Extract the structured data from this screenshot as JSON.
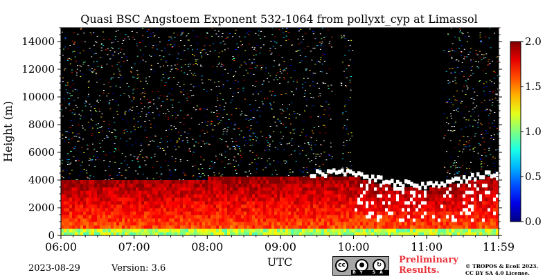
{
  "chart_data": {
    "type": "heatmap",
    "title": "Quasi BSC Angstoem Exponent 532-1064 from pollyxt_cyp at Limassol",
    "xlabel": "UTC",
    "ylabel": "Height (m)",
    "x_ticks": [
      "06:00",
      "07:00",
      "08:00",
      "09:00",
      "10:00",
      "11:00",
      "11:59"
    ],
    "x_range_hours": [
      6.0,
      11.983
    ],
    "y_ticks": [
      0,
      2000,
      4000,
      6000,
      8000,
      10000,
      12000,
      14000
    ],
    "y_range_m": [
      0,
      15000
    ],
    "colorbar": {
      "ticks": [
        "0.0",
        "0.5",
        "1.0",
        "1.5",
        "2.0"
      ],
      "range": [
        0.0,
        2.0
      ],
      "colormap": "jet"
    },
    "layer_top_height_m": [
      {
        "time_h": 6.0,
        "height": 4000
      },
      {
        "time_h": 8.0,
        "height": 4000
      },
      {
        "time_h": 9.5,
        "height": 4100
      },
      {
        "time_h": 9.9,
        "height": 4200
      },
      {
        "time_h": 10.5,
        "height": 3500
      },
      {
        "time_h": 11.0,
        "height": 3200
      },
      {
        "time_h": 11.983,
        "height": 4200
      }
    ],
    "masked_columns_hours": [
      [
        9.7,
        9.82
      ],
      [
        9.98,
        10.42
      ],
      [
        10.42,
        11.22
      ]
    ],
    "notes": {
      "boundary_layer_values": "mostly 1.5-2.0 below ~4000 m, with lower values (~1.0) near the surface",
      "noise_above_layer": "scattered mixed values above 4000 m"
    }
  },
  "footer": {
    "date": "2023-08-29",
    "version": "Version: 3.6",
    "license_badge": [
      "cc",
      "BY",
      "SA"
    ],
    "preliminary_line1": "Preliminary",
    "preliminary_line2": "Results.",
    "copyright_line1": "© TROPOS & EcoE 2023.",
    "copyright_line2": "CC BY SA 4.0 License."
  },
  "colors": {
    "background_masked": "#000000",
    "no_data": "#ffffff"
  }
}
